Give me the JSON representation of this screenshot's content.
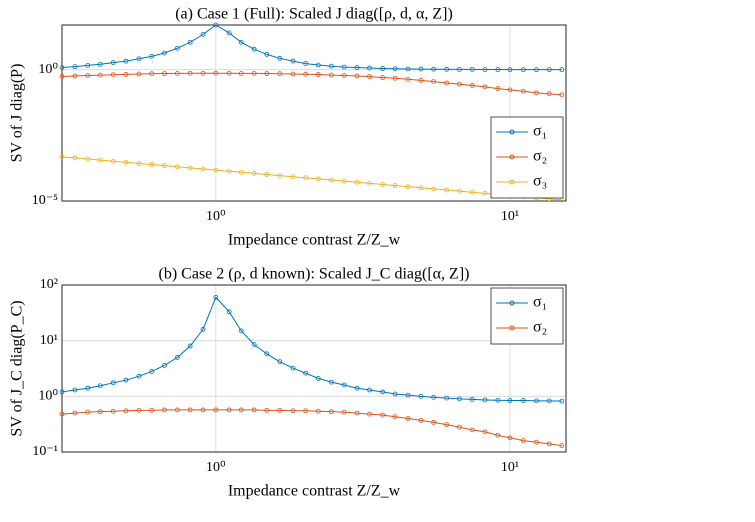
{
  "chart_data": [
    {
      "type": "line",
      "title": "(a) Case 1 (Full): Scaled J diag([ρ, d, α, Z])",
      "xlabel": "Impedance contrast Z/Z_w",
      "ylabel": "SV of J diag(P)",
      "logx": true,
      "logy": true,
      "grid": true,
      "legend": "lower right",
      "xlim": [
        0.3,
        15.5
      ],
      "ylim": [
        1e-05,
        50
      ],
      "xticks": [
        {
          "value": 1,
          "label": "10⁰"
        },
        {
          "value": 10,
          "label": "10¹"
        }
      ],
      "yticks": [
        {
          "value": 1e-05,
          "label": "10⁻⁵"
        },
        {
          "value": 1,
          "label": "10⁰"
        }
      ],
      "x": [
        0.3,
        0.332,
        0.367,
        0.405,
        0.448,
        0.495,
        0.548,
        0.606,
        0.669,
        0.74,
        0.818,
        0.905,
        1,
        1.11,
        1.22,
        1.35,
        1.49,
        1.65,
        1.83,
        2.02,
        2.23,
        2.47,
        2.73,
        3.02,
        3.33,
        3.69,
        4.07,
        4.5,
        4.98,
        5.5,
        6.09,
        6.73,
        7.44,
        8.22,
        9.09,
        10.0,
        11.1,
        12.3,
        13.6,
        15.0
      ],
      "series": [
        {
          "name": "σ₁",
          "color": "#0072bd",
          "values": [
            1.2,
            1.3,
            1.45,
            1.6,
            1.85,
            2.1,
            2.6,
            3.2,
            4.3,
            6.5,
            11,
            22,
            50,
            25,
            11,
            6,
            3.8,
            2.7,
            2.1,
            1.7,
            1.5,
            1.35,
            1.25,
            1.2,
            1.15,
            1.1,
            1.08,
            1.06,
            1.05,
            1.04,
            1.03,
            1.02,
            1.02,
            1.01,
            1.01,
            1.0,
            1.0,
            1.0,
            1.0,
            1.0
          ]
        },
        {
          "name": "σ₂",
          "color": "#d95319",
          "values": [
            0.55,
            0.57,
            0.6,
            0.62,
            0.64,
            0.66,
            0.68,
            0.7,
            0.71,
            0.72,
            0.73,
            0.73,
            0.73,
            0.73,
            0.72,
            0.72,
            0.71,
            0.7,
            0.68,
            0.67,
            0.65,
            0.62,
            0.6,
            0.57,
            0.54,
            0.5,
            0.47,
            0.43,
            0.39,
            0.35,
            0.31,
            0.28,
            0.25,
            0.22,
            0.19,
            0.17,
            0.15,
            0.13,
            0.12,
            0.11
          ]
        },
        {
          "name": "σ₃",
          "color": "#edb120",
          "values": [
            0.00048,
            0.000436,
            0.000396,
            0.000359,
            0.000326,
            0.000296,
            0.000268,
            0.000244,
            0.000221,
            0.000201,
            0.000182,
            0.000165,
            0.00015,
            0.000136,
            0.000124,
            0.000112,
            0.000102,
            9.25e-05,
            8.4e-05,
            7.62e-05,
            6.92e-05,
            6.28e-05,
            5.7e-05,
            5.17e-05,
            4.7e-05,
            4.26e-05,
            3.87e-05,
            3.51e-05,
            3.19e-05,
            2.89e-05,
            2.63e-05,
            2.38e-05,
            2.16e-05,
            1.96e-05,
            1.78e-05,
            1.62e-05,
            1.47e-05,
            1.33e-05,
            1.21e-05,
            1.1e-05
          ]
        }
      ]
    },
    {
      "type": "line",
      "title": "(b) Case 2 (ρ, d known): Scaled J_C diag([α, Z])",
      "xlabel": "Impedance contrast Z/Z_w",
      "ylabel": "SV of J_C diag(P_C)",
      "logx": true,
      "logy": true,
      "grid": true,
      "legend": "upper right",
      "xlim": [
        0.3,
        15.5
      ],
      "ylim": [
        0.1,
        100
      ],
      "xticks": [
        {
          "value": 1,
          "label": "10⁰"
        },
        {
          "value": 10,
          "label": "10¹"
        }
      ],
      "yticks": [
        {
          "value": 0.1,
          "label": "10⁻¹"
        },
        {
          "value": 1,
          "label": "10⁰"
        },
        {
          "value": 10,
          "label": "10¹"
        },
        {
          "value": 100,
          "label": "10²"
        }
      ],
      "x": [
        0.3,
        0.332,
        0.367,
        0.405,
        0.448,
        0.495,
        0.548,
        0.606,
        0.669,
        0.74,
        0.818,
        0.905,
        1,
        1.11,
        1.22,
        1.35,
        1.49,
        1.65,
        1.83,
        2.02,
        2.23,
        2.47,
        2.73,
        3.02,
        3.33,
        3.69,
        4.07,
        4.5,
        4.98,
        5.5,
        6.09,
        6.73,
        7.44,
        8.22,
        9.09,
        10.0,
        11.1,
        12.3,
        13.6,
        15.0
      ],
      "series": [
        {
          "name": "σ₁",
          "color": "#0072bd",
          "values": [
            1.2,
            1.3,
            1.4,
            1.55,
            1.75,
            1.95,
            2.3,
            2.8,
            3.6,
            5.0,
            8.0,
            16,
            60,
            33,
            15,
            8.5,
            5.8,
            4.2,
            3.2,
            2.6,
            2.1,
            1.8,
            1.6,
            1.4,
            1.3,
            1.2,
            1.1,
            1.05,
            1.0,
            0.96,
            0.93,
            0.9,
            0.88,
            0.86,
            0.85,
            0.84,
            0.84,
            0.83,
            0.83,
            0.82
          ]
        },
        {
          "name": "σ₂",
          "color": "#d95319",
          "values": [
            0.48,
            0.5,
            0.52,
            0.53,
            0.54,
            0.55,
            0.56,
            0.56,
            0.57,
            0.57,
            0.57,
            0.57,
            0.57,
            0.57,
            0.57,
            0.57,
            0.56,
            0.56,
            0.55,
            0.55,
            0.54,
            0.53,
            0.52,
            0.5,
            0.48,
            0.46,
            0.43,
            0.4,
            0.37,
            0.34,
            0.31,
            0.28,
            0.25,
            0.23,
            0.2,
            0.18,
            0.16,
            0.15,
            0.14,
            0.13
          ]
        }
      ]
    }
  ]
}
